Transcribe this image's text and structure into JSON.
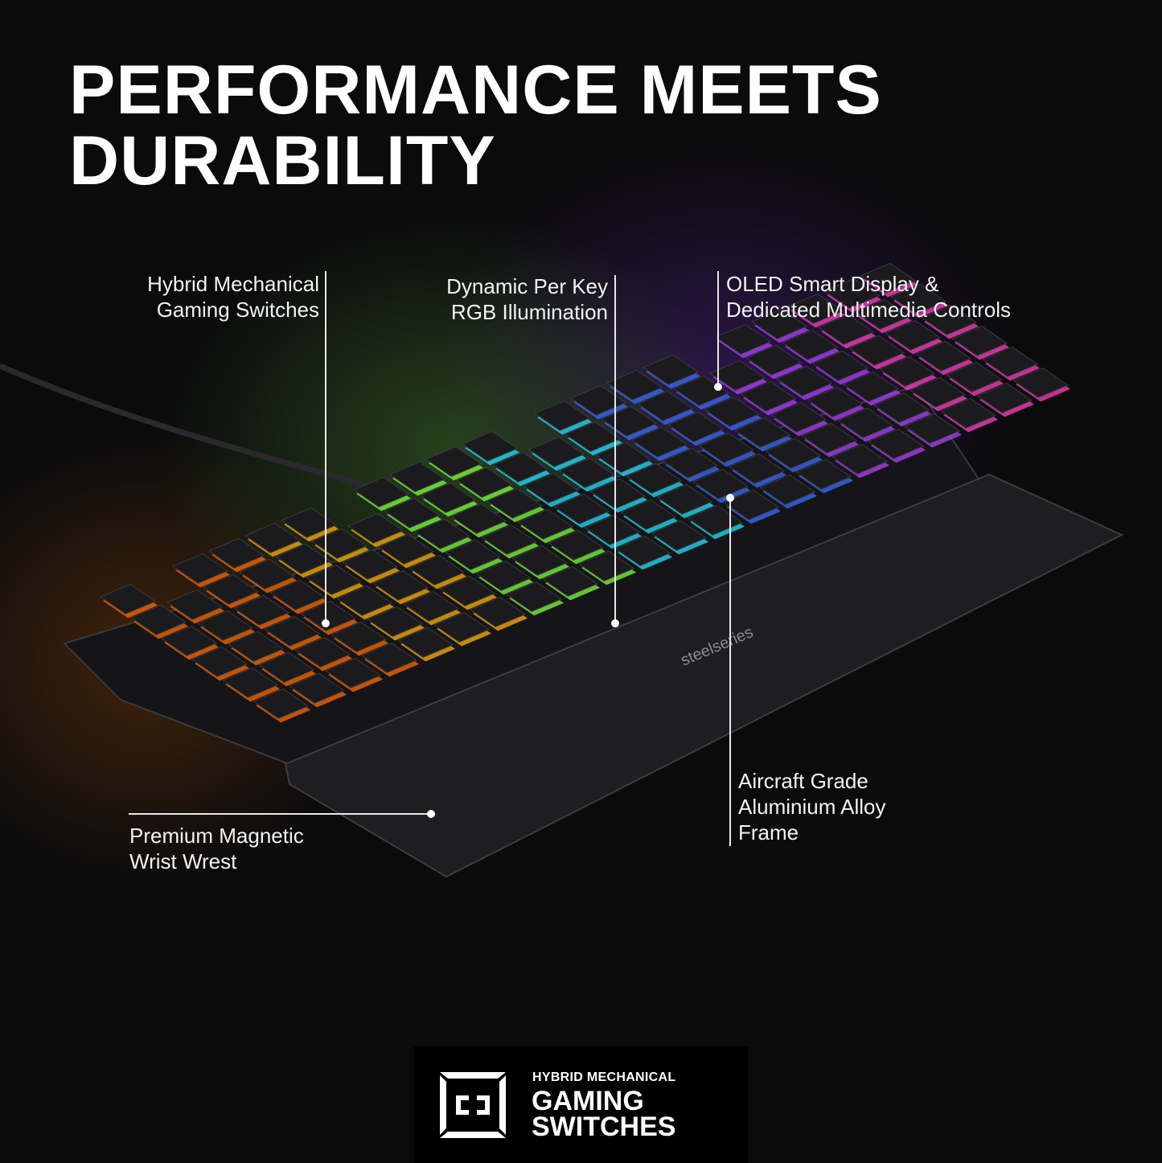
{
  "headline": {
    "line1": "PERFORMANCE MEETS",
    "line2": "DURABILITY"
  },
  "callouts": {
    "switches": {
      "line1": "Hybrid Mechanical",
      "line2": "Gaming Switches"
    },
    "rgb": {
      "line1": "Dynamic Per Key",
      "line2": "RGB Illumination"
    },
    "oled": {
      "line1": "OLED Smart Display &",
      "line2": "Dedicated Multimedia Controls"
    },
    "frame": {
      "line1": "Aircraft Grade",
      "line2": "Aluminium Alloy",
      "line3": "Frame"
    },
    "wrist": {
      "line1": "Premium Magnetic",
      "line2": "Wrist Wrest"
    }
  },
  "product": {
    "brand_logo": "steelseries"
  },
  "badge": {
    "subtitle": "HYBRID MECHANICAL",
    "line1": "GAMING",
    "line2": "SWITCHES",
    "icon": "switch-icon"
  },
  "colors": {
    "background": "#0b0b0c",
    "text": "#ffffff",
    "rgb_gradient": [
      "#ff6a00",
      "#ffb000",
      "#7cff3a",
      "#20e0ff",
      "#3a6bff",
      "#b040ff",
      "#ff40c0"
    ]
  }
}
